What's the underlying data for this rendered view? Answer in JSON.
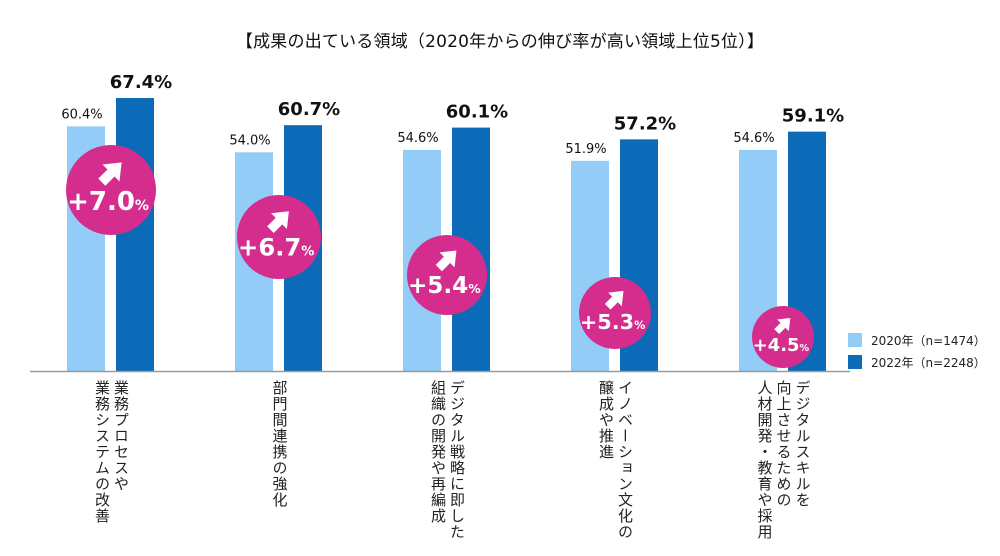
{
  "title": "【成果の出ている領域（2020年からの伸び率が高い領域上位5位）】",
  "chart_data": {
    "type": "bar",
    "title": "【成果の出ている領域（2020年からの伸び率が高い領域上位5位）】",
    "xlabel": "",
    "ylabel": "",
    "ylim": [
      0,
      70
    ],
    "grid": false,
    "legend_position": "bottom-right",
    "categories": [
      "業務プロセスや\n業務システムの改善",
      "部門間連携の強化",
      "デジタル戦略に即した\n組織の開発や再編成",
      "イノベーション文化の\n醸成や推進",
      "デジタルスキルを\n向上させるための\n人材開発・教育や採用"
    ],
    "series": [
      {
        "name": "2020年（n=1474）",
        "color": "#93cdf7",
        "values": [
          60.4,
          54.0,
          54.6,
          51.9,
          54.6
        ],
        "labels": [
          "60.4%",
          "54.0%",
          "54.6%",
          "51.9%",
          "54.6%"
        ]
      },
      {
        "name": "2022年（n=2248）",
        "color": "#0b6bb8",
        "values": [
          67.4,
          60.7,
          60.1,
          57.2,
          59.1
        ],
        "labels": [
          "67.4%",
          "60.7%",
          "60.1%",
          "57.2%",
          "59.1%"
        ]
      }
    ],
    "annotations": {
      "type": "growth-badge",
      "color": "#d52d8e",
      "icon": "arrow-up-right-icon",
      "values": [
        "+7.0",
        "+6.7",
        "+5.4",
        "+5.3",
        "+4.5"
      ],
      "unit": "%"
    }
  }
}
